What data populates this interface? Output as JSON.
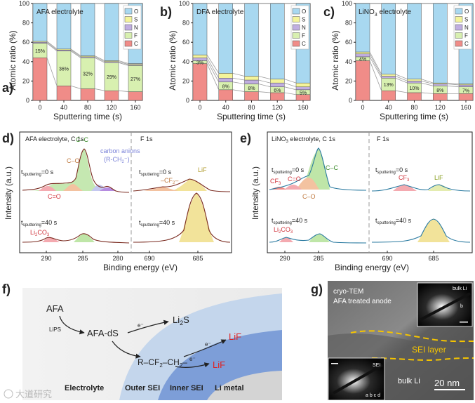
{
  "panels": {
    "a": {
      "letter": "a)",
      "title": "AFA electrolyte"
    },
    "b": {
      "letter": "b)",
      "title": "DFA electrolyte"
    },
    "c": {
      "letter": "c)",
      "title": "LiNO3 electrolyte",
      "title_main": "LiNO",
      "title_sub": "3",
      "title_tail": " electrolyte"
    },
    "d": {
      "letter": "d)"
    },
    "e": {
      "letter": "e)"
    },
    "f": {
      "letter": "f)"
    },
    "g": {
      "letter": "g)"
    }
  },
  "bar_axes": {
    "ylabel": "Atomic ratio (%)",
    "xlabel": "Sputtering time (s)",
    "x_ticks": [
      "0",
      "40",
      "80",
      "120",
      "160"
    ],
    "y_ticks": [
      "0",
      "20",
      "40",
      "60",
      "80",
      "100"
    ]
  },
  "legend_elements": [
    "O",
    "S",
    "N",
    "F",
    "C"
  ],
  "colors": {
    "O": "#a8d8f0",
    "S": "#f4f49a",
    "N": "#c0aee0",
    "F": "#d8f0b0",
    "C": "#f08c88",
    "connector": "#9e9e9e"
  },
  "chart_data": [
    {
      "type": "bar",
      "stacked": true,
      "title": "AFA electrolyte",
      "xlabel": "Sputtering time (s)",
      "ylabel": "Atomic ratio (%)",
      "ylim": [
        0,
        100
      ],
      "categories": [
        "0",
        "40",
        "80",
        "120",
        "160"
      ],
      "series": [
        {
          "name": "C",
          "values": [
            44,
            15,
            12,
            10,
            9
          ]
        },
        {
          "name": "F",
          "values": [
            15,
            36,
            32,
            29,
            27
          ]
        },
        {
          "name": "N",
          "values": [
            1,
            1,
            1,
            1,
            1
          ]
        },
        {
          "name": "S",
          "values": [
            1,
            1,
            1,
            1,
            1
          ]
        },
        {
          "name": "O",
          "values": [
            39,
            47,
            54,
            59,
            62
          ]
        }
      ],
      "data_labels": [
        "15%",
        "36%",
        "32%",
        "29%",
        "27%"
      ]
    },
    {
      "type": "bar",
      "stacked": true,
      "title": "DFA electrolyte",
      "xlabel": "Sputtering time (s)",
      "ylabel": "Atomic ratio (%)",
      "ylim": [
        0,
        100
      ],
      "categories": [
        "0",
        "40",
        "80",
        "120",
        "160"
      ],
      "series": [
        {
          "name": "C",
          "values": [
            38,
            11,
            9,
            8,
            6
          ]
        },
        {
          "name": "F",
          "values": [
            3,
            8,
            8,
            6,
            5
          ]
        },
        {
          "name": "N",
          "values": [
            3,
            4,
            4,
            4,
            3
          ]
        },
        {
          "name": "S",
          "values": [
            3,
            5,
            4,
            4,
            4
          ]
        },
        {
          "name": "O",
          "values": [
            53,
            72,
            75,
            78,
            82
          ]
        }
      ],
      "data_labels": [
        "3%",
        "8%",
        "8%",
        "6%",
        "5%"
      ]
    },
    {
      "type": "bar",
      "stacked": true,
      "title": "LiNO3 electrolyte",
      "xlabel": "Sputtering time (s)",
      "ylabel": "Atomic ratio (%)",
      "ylim": [
        0,
        100
      ],
      "categories": [
        "0",
        "40",
        "80",
        "120",
        "160"
      ],
      "series": [
        {
          "name": "C",
          "values": [
            41,
            10,
            8,
            7,
            7
          ]
        },
        {
          "name": "F",
          "values": [
            4,
            13,
            10,
            8,
            7
          ]
        },
        {
          "name": "N",
          "values": [
            3,
            2,
            2,
            2,
            2
          ]
        },
        {
          "name": "S",
          "values": [
            2,
            2,
            2,
            1,
            1
          ]
        },
        {
          "name": "O",
          "values": [
            50,
            73,
            78,
            82,
            83
          ]
        }
      ],
      "data_labels": [
        "4%",
        "13%",
        "10%",
        "8%",
        "7%"
      ]
    }
  ],
  "xps": {
    "ylabel": "Intensity (a.u.)",
    "xlabel": "Binding energy (eV)",
    "d": {
      "c1s_title": "AFA electrolyte, C 1s",
      "f1s_title": "F 1s",
      "c_ticks": [
        "290",
        "285",
        "280"
      ],
      "f_ticks": [
        "690",
        "685"
      ],
      "t0_main": "t",
      "t0_sub": "sputtering",
      "t0_tail": "=0 s",
      "t40_tail": "=40 s",
      "cc": "C–C",
      "co": "C–O",
      "c_eq_o": "C=O",
      "carbon_anions": "carbon anions",
      "rch2_a": "(R-CH",
      "rch2_sub": "2",
      "rch2_b": "⁻)",
      "li2co3_a": "Li",
      "li2co3_b": "2",
      "li2co3_c": "CO",
      "li2co3_d": "3",
      "cf2_a": "–CF",
      "cf2_b": "2",
      "cf2_c": "–",
      "lif": "LiF"
    },
    "e": {
      "c1s_title_a": "LiNO",
      "c1s_title_b": "3",
      "c1s_title_c": " electrolyte, C 1s",
      "f1s_title": "F 1s",
      "c_ticks": [
        "290",
        "285"
      ],
      "f_ticks": [
        "690",
        "685"
      ],
      "cc": "C–C",
      "co": "C–O",
      "c_eq_o": "C=O",
      "cf3_a": "CF",
      "cf3_b": "3",
      "li2co3_a": "Li",
      "li2co3_b": "2",
      "li2co3_c": "CO",
      "li2co3_d": "3",
      "lif": "LiF"
    }
  },
  "scheme": {
    "afa": "AFA",
    "lips": "LiPS",
    "afa_ds": "AFA-dS",
    "e_minus": "e⁻",
    "li2s_a": "Li",
    "li2s_b": "2",
    "li2s_c": "S",
    "lif": "LiF",
    "r_cf2_a": "R–CF",
    "r_cf2_b": "2",
    "r_cf2_c": "–CH",
    "r_cf2_d": "2",
    "r_cf2_e": "–",
    "electrolyte": "Electrolyte",
    "outer_sei": "Outer SEI",
    "inner_sei": "Inner SEI",
    "li_metal": "Li metal"
  },
  "tem": {
    "cryo": "cryo-TEM",
    "afa_anode": "AFA treated anode",
    "bulk_li_inset": "bulk Li",
    "b_label": "b",
    "sei_layer": "SEI layer",
    "bulk_li": "bulk Li",
    "scale": "20 nm",
    "sei_inset": "SEI",
    "abcd": "a b c d"
  },
  "watermark": "大道研究"
}
